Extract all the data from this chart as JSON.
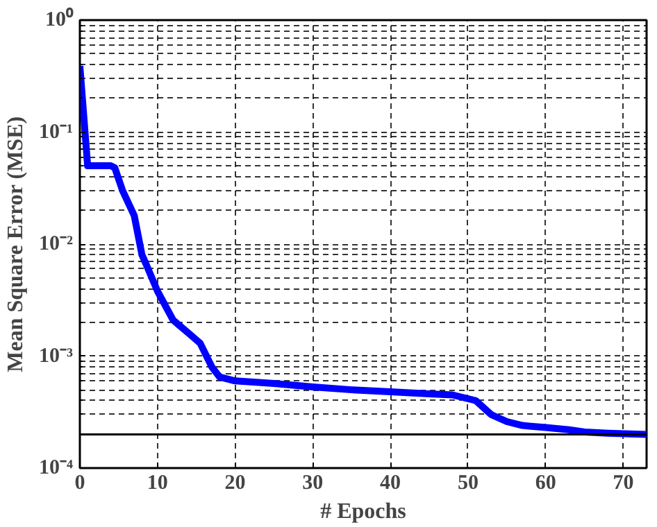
{
  "chart_data": {
    "type": "line",
    "xlabel": "# Epochs",
    "ylabel": "Mean Square Error (MSE)",
    "log": "y",
    "grid": true,
    "xlim": [
      0,
      73
    ],
    "xticks": [
      0,
      10,
      20,
      30,
      40,
      50,
      60,
      70
    ],
    "ylim": [
      0.0001,
      1
    ],
    "yticks": [
      {
        "value": 0.0001,
        "label": "10⁻⁴"
      },
      {
        "value": 0.001,
        "label": "10⁻³"
      },
      {
        "value": 0.01,
        "label": "10⁻²"
      },
      {
        "value": 0.1,
        "label": "10⁻¹"
      },
      {
        "value": 1,
        "label": "10⁰"
      }
    ],
    "ref_lines": [
      {
        "axis": "y",
        "value": 0.0002,
        "color": "#000000"
      }
    ],
    "series": [
      {
        "color": "#0000ff",
        "x": [
          0,
          1,
          2,
          3,
          4,
          4.5,
          5.5,
          7,
          8,
          8.5,
          10,
          12,
          14,
          15.5,
          17,
          18,
          20,
          25,
          30,
          35,
          40,
          45,
          48,
          51,
          53,
          55,
          57,
          60,
          63,
          65,
          68,
          73
        ],
        "values": [
          0.39,
          0.05,
          0.05,
          0.05,
          0.05,
          0.048,
          0.03,
          0.018,
          0.008,
          0.0067,
          0.0038,
          0.0021,
          0.0016,
          0.0013,
          0.0008,
          0.00065,
          0.0006,
          0.00057,
          0.00053,
          0.0005,
          0.00048,
          0.00046,
          0.00045,
          0.0004,
          0.0003,
          0.00026,
          0.00024,
          0.00023,
          0.00022,
          0.00021,
          0.000205,
          0.0002
        ]
      }
    ]
  }
}
